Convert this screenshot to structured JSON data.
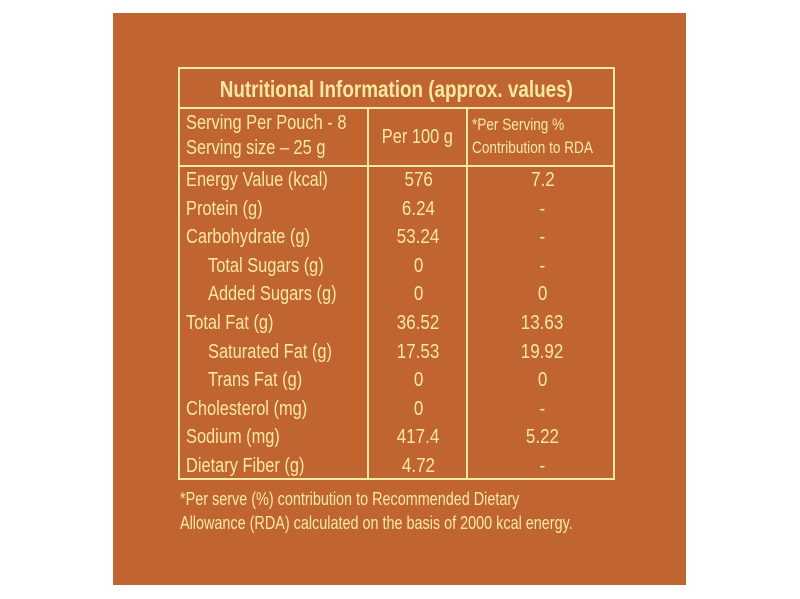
{
  "title": "Nutritional Information (approx. values)",
  "header": {
    "col1_line1": "Serving Per Pouch - 8",
    "col1_line2": "Serving size – 25 g",
    "col2": "Per 100 g",
    "col3_line1": "*Per Serving %",
    "col3_line2": "Contribution to RDA"
  },
  "rows": [
    {
      "name": "Energy Value (kcal)",
      "per100": "576",
      "rda": "7.2",
      "indent": false
    },
    {
      "name": "Protein (g)",
      "per100": "6.24",
      "rda": "-",
      "indent": false
    },
    {
      "name": "Carbohydrate (g)",
      "per100": "53.24",
      "rda": "-",
      "indent": false
    },
    {
      "name": "Total Sugars (g)",
      "per100": "0",
      "rda": "-",
      "indent": true
    },
    {
      "name": "Added Sugars (g)",
      "per100": "0",
      "rda": "0",
      "indent": true
    },
    {
      "name": "Total Fat (g)",
      "per100": "36.52",
      "rda": "13.63",
      "indent": false
    },
    {
      "name": "Saturated Fat (g)",
      "per100": "17.53",
      "rda": "19.92",
      "indent": true
    },
    {
      "name": "Trans Fat (g)",
      "per100": "0",
      "rda": "0",
      "indent": true
    },
    {
      "name": "Cholesterol (mg)",
      "per100": "0",
      "rda": "-",
      "indent": false
    },
    {
      "name": "Sodium (mg)",
      "per100": "417.4",
      "rda": "5.22",
      "indent": false
    },
    {
      "name": "Dietary Fiber (g)",
      "per100": "4.72",
      "rda": "-",
      "indent": false
    }
  ],
  "footnote_line1": "*Per serve (%) contribution to Recommended Dietary",
  "footnote_line2": "Allowance (RDA) calculated on the basis of 2000 kcal energy.",
  "colors": {
    "background": "#c0652f",
    "text": "#f7e8a6"
  }
}
